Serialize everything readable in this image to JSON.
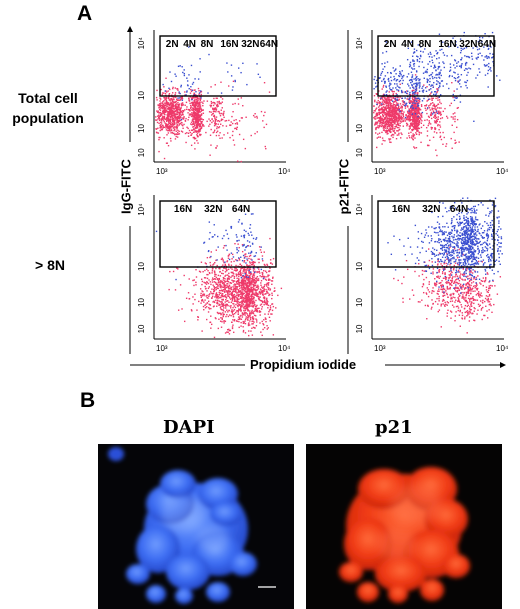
{
  "panel_a": {
    "letter": "A",
    "row_labels": [
      "Total cell population",
      "> 8N"
    ],
    "y_labels": [
      "IgG-FITC",
      "p21-FITC"
    ],
    "x_label": "Propidium iodide",
    "gate_labels_top": [
      "2N",
      "4N",
      "8N",
      "16N",
      "32N",
      "64N"
    ],
    "gate_labels_bottom": [
      "16N",
      "32N",
      "64N"
    ],
    "colors": {
      "negative": "#ee3a6a",
      "positive": "#3a4fd0",
      "gate": "#000000"
    }
  },
  "chart_data": [
    {
      "type": "scatter",
      "title": "",
      "row": "Total cell population",
      "stain": "IgG-FITC",
      "xlabel": "Propidium iodide",
      "ylabel": "IgG-FITC",
      "log_x": true,
      "log_y": true,
      "x_ticks": [
        "10³",
        "10⁴"
      ],
      "y_ticks": [
        "10",
        "10",
        "10",
        "10⁴"
      ],
      "series": [
        {
          "color": "#ee3a6a",
          "clusters": [
            {
              "x": 2,
              "y": -0.8,
              "sx": 0.6,
              "sy": 0.5,
              "n": 700
            },
            {
              "x": 4.7,
              "y": -0.8,
              "sx": 0.5,
              "sy": 0.5,
              "n": 420
            },
            {
              "x": 9,
              "y": -0.9,
              "sx": 1.3,
              "sy": 0.6,
              "n": 120
            },
            {
              "x": 17,
              "y": -1.2,
              "sx": 3,
              "sy": 0.7,
              "n": 40
            },
            {
              "x": 35,
              "y": -1.4,
              "sx": 10,
              "sy": 0.7,
              "n": 22
            }
          ]
        },
        {
          "color": "#3a4fd0",
          "clusters": [
            {
              "x": 3.3,
              "y": 0.45,
              "sx": 1.2,
              "sy": 0.7,
              "n": 45
            },
            {
              "x": 15,
              "y": 1.0,
              "sx": 10,
              "sy": 0.6,
              "n": 22
            }
          ]
        }
      ]
    },
    {
      "type": "scatter",
      "title": "",
      "row": "Total cell population",
      "stain": "p21-FITC",
      "xlabel": "Propidium iodide",
      "ylabel": "p21-FITC",
      "log_x": true,
      "log_y": true,
      "x_ticks": [
        "10³",
        "10⁴"
      ],
      "y_ticks": [
        "10",
        "10",
        "10",
        "10⁴"
      ],
      "series": [
        {
          "color": "#ee3a6a",
          "clusters": [
            {
              "x": 2,
              "y": -0.8,
              "sx": 0.6,
              "sy": 0.5,
              "n": 800
            },
            {
              "x": 4.7,
              "y": -0.8,
              "sx": 0.5,
              "sy": 0.5,
              "n": 480
            },
            {
              "x": 9,
              "y": -0.8,
              "sx": 1.3,
              "sy": 0.6,
              "n": 140
            },
            {
              "x": 17,
              "y": -1.2,
              "sx": 3,
              "sy": 0.7,
              "n": 40
            }
          ]
        },
        {
          "color": "#3a4fd0",
          "clusters": [
            {
              "x": 2.2,
              "y": 0.5,
              "sx": 0.8,
              "sy": 0.6,
              "n": 120
            },
            {
              "x": 4.7,
              "y": 0.7,
              "sx": 0.8,
              "sy": 0.7,
              "n": 140
            },
            {
              "x": 9,
              "y": 0.9,
              "sx": 2,
              "sy": 0.7,
              "n": 110
            },
            {
              "x": 20,
              "y": 1.3,
              "sx": 5,
              "sy": 0.8,
              "n": 90
            },
            {
              "x": 48,
              "y": 1.9,
              "sx": 12,
              "sy": 0.8,
              "n": 80
            }
          ]
        }
      ]
    },
    {
      "type": "scatter",
      "title": "",
      "row": "> 8N",
      "stain": "IgG-FITC",
      "xlabel": "Propidium iodide",
      "ylabel": "IgG-FITC",
      "log_x": true,
      "log_y": true,
      "x_ticks": [
        "10³",
        "10⁴"
      ],
      "y_ticks": [
        "10",
        "10",
        "10",
        "10⁴"
      ],
      "series": [
        {
          "color": "#ee3a6a",
          "clusters": [
            {
              "x": 11,
              "y": -1.0,
              "sx": 4,
              "sy": 0.7,
              "n": 550
            },
            {
              "x": 24,
              "y": -1.0,
              "sx": 5,
              "sy": 0.7,
              "n": 650
            },
            {
              "x": 40,
              "y": -1.1,
              "sx": 10,
              "sy": 0.7,
              "n": 300
            }
          ]
        },
        {
          "color": "#3a4fd0",
          "clusters": [
            {
              "x": 14,
              "y": 0.8,
              "sx": 7,
              "sy": 0.7,
              "n": 65
            },
            {
              "x": 28,
              "y": 0.8,
              "sx": 6,
              "sy": 0.6,
              "n": 45
            }
          ]
        }
      ]
    },
    {
      "type": "scatter",
      "title": "",
      "row": "> 8N",
      "stain": "p21-FITC",
      "xlabel": "Propidium iodide",
      "ylabel": "p21-FITC",
      "log_x": true,
      "log_y": true,
      "x_ticks": [
        "10³",
        "10⁴"
      ],
      "y_ticks": [
        "10",
        "10",
        "10",
        "10⁴"
      ],
      "series": [
        {
          "color": "#ee3a6a",
          "clusters": [
            {
              "x": 13,
              "y": -0.7,
              "sx": 5,
              "sy": 0.6,
              "n": 260
            },
            {
              "x": 26,
              "y": -1.0,
              "sx": 6,
              "sy": 0.6,
              "n": 220
            },
            {
              "x": 45,
              "y": -1.1,
              "sx": 10,
              "sy": 0.6,
              "n": 80
            }
          ]
        },
        {
          "color": "#3a4fd0",
          "clusters": [
            {
              "x": 14,
              "y": 0.9,
              "sx": 5,
              "sy": 0.7,
              "n": 320
            },
            {
              "x": 28,
              "y": 1.1,
              "sx": 5,
              "sy": 0.7,
              "n": 440
            },
            {
              "x": 55,
              "y": 1.2,
              "sx": 14,
              "sy": 0.8,
              "n": 200
            }
          ]
        }
      ]
    }
  ],
  "panel_b": {
    "letter": "B",
    "image_labels": [
      "DAPI",
      "p21"
    ],
    "dapi_color": "#3a6cf5",
    "p21_color": "#f23814"
  }
}
